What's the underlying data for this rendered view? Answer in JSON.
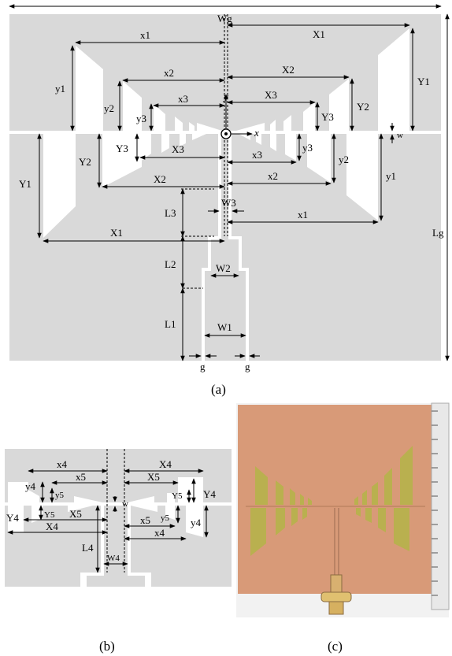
{
  "figure_a": {
    "caption": "(a)",
    "labels": {
      "Wg": "Wg",
      "Lg": "Lg",
      "x1": "x1",
      "x2": "x2",
      "x3": "x3",
      "X1": "X1",
      "X2": "X2",
      "X3": "X3",
      "y1": "y1",
      "y2": "y2",
      "y3": "y3",
      "Y1": "Y1",
      "Y2": "Y2",
      "Y3": "Y3",
      "w": "w",
      "W1": "W1",
      "W2": "W2",
      "W3": "W3",
      "L1": "L1",
      "L2": "L2",
      "L3": "L3",
      "g": "g",
      "axis_x": "x",
      "axis_y": "y"
    }
  },
  "figure_b": {
    "caption": "(b)",
    "labels": {
      "x4": "x4",
      "x5": "x5",
      "X4": "X4",
      "X5": "X5",
      "y4": "y4",
      "y5": "y5",
      "Y4": "Y4",
      "Y5": "Y5",
      "w": "w",
      "L4": "L4",
      "W4": "W4"
    }
  },
  "figure_c": {
    "caption": "(c)",
    "colors": {
      "board": "#d89a78",
      "metal_cut": "#b9b04f",
      "ruler": "#e8e8e8"
    }
  }
}
